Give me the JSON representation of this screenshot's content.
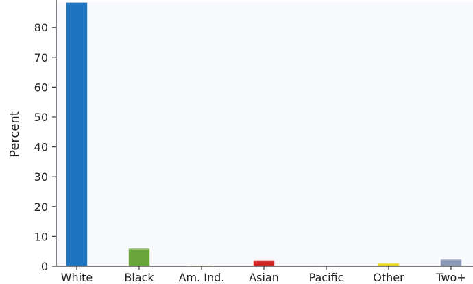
{
  "chart_data": {
    "type": "bar",
    "ylabel": "Percent",
    "xlabel": "",
    "ylim": [
      0,
      88
    ],
    "yticks": [
      0,
      10,
      20,
      30,
      40,
      50,
      60,
      70,
      80
    ],
    "categories": [
      "White",
      "Black",
      "Am. Ind.",
      "Asian",
      "Pacific",
      "Other",
      "Two+"
    ],
    "values": [
      88.5,
      6.0,
      0.3,
      2.0,
      0.1,
      1.1,
      2.4
    ],
    "colors": [
      "#1f74c0",
      "#6aa53b",
      "#8c6d1f",
      "#cc2525",
      "#888888",
      "#e3d41c",
      "#8a97b5"
    ],
    "grid": false,
    "legend": "none"
  }
}
